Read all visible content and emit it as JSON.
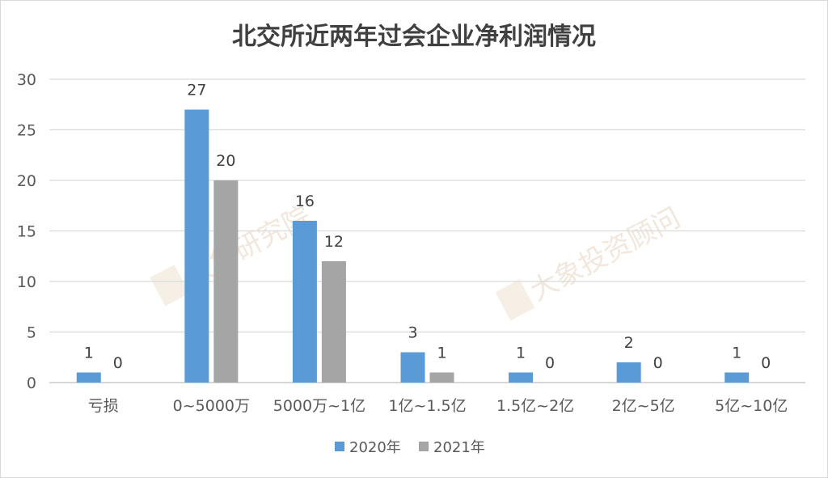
{
  "chart_data": {
    "type": "bar",
    "title": "北交所近两年过会企业净利润情况",
    "categories": [
      "亏损",
      "0~5000万",
      "5000万~1亿",
      "1亿~1.5亿",
      "1.5亿~2亿",
      "2亿~5亿",
      "5亿~10亿"
    ],
    "series": [
      {
        "name": "2020年",
        "color": "#5b9bd5",
        "values": [
          1,
          27,
          16,
          3,
          1,
          2,
          1
        ]
      },
      {
        "name": "2021年",
        "color": "#a5a5a5",
        "values": [
          0,
          20,
          12,
          1,
          0,
          0,
          0
        ]
      }
    ],
    "ylim": [
      0,
      30
    ],
    "yticks": [
      0,
      5,
      10,
      15,
      20,
      25,
      30
    ],
    "grid": true,
    "legend": "bottom",
    "data_labels": true
  },
  "watermarks": [
    "大象研究院",
    "大象投资顾问"
  ]
}
